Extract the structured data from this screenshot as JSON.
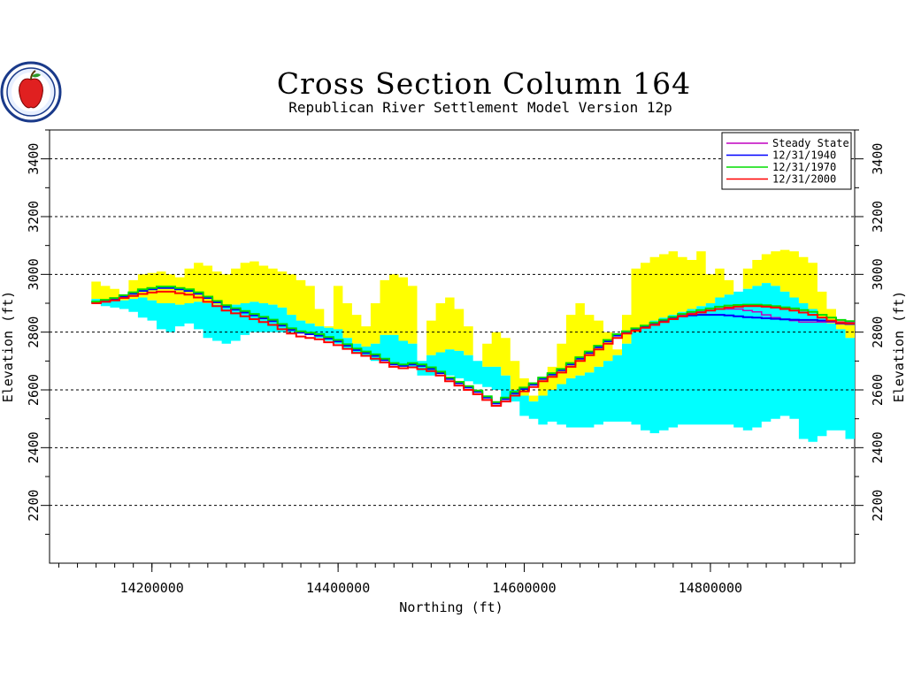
{
  "chart_data": {
    "type": "area",
    "title": "Cross Section Column 164",
    "subtitle": "Republican River Settlement Model Version 12p",
    "xlabel": "Northing (ft)",
    "ylabel": "Elevation (ft)",
    "ylabel_right": "Elevation (ft)",
    "xlim": [
      14090000,
      14955000
    ],
    "ylim": [
      2000,
      3500
    ],
    "xticks": [
      {
        "value": 14200000,
        "label": "14200000"
      },
      {
        "value": 14400000,
        "label": "14400000"
      },
      {
        "value": 14600000,
        "label": "14600000"
      },
      {
        "value": 14800000,
        "label": "14800000"
      }
    ],
    "yticks": [
      {
        "value": 2200,
        "label": "2200"
      },
      {
        "value": 2400,
        "label": "2400"
      },
      {
        "value": 2600,
        "label": "2600"
      },
      {
        "value": 2800,
        "label": "2800"
      },
      {
        "value": 3000,
        "label": "3000"
      },
      {
        "value": 3200,
        "label": "3200"
      },
      {
        "value": 3400,
        "label": "3400"
      }
    ],
    "grid": true,
    "legend_position": "top-right",
    "layers": {
      "x": [
        14140000,
        14150000,
        14160000,
        14170000,
        14180000,
        14190000,
        14200000,
        14210000,
        14220000,
        14230000,
        14240000,
        14250000,
        14260000,
        14270000,
        14280000,
        14290000,
        14300000,
        14310000,
        14320000,
        14330000,
        14340000,
        14350000,
        14360000,
        14370000,
        14380000,
        14390000,
        14400000,
        14410000,
        14420000,
        14430000,
        14440000,
        14450000,
        14460000,
        14470000,
        14480000,
        14490000,
        14500000,
        14510000,
        14520000,
        14530000,
        14540000,
        14550000,
        14560000,
        14570000,
        14580000,
        14590000,
        14600000,
        14610000,
        14620000,
        14630000,
        14640000,
        14650000,
        14660000,
        14670000,
        14680000,
        14690000,
        14700000,
        14710000,
        14720000,
        14730000,
        14740000,
        14750000,
        14760000,
        14770000,
        14780000,
        14790000,
        14800000,
        14810000,
        14820000,
        14830000,
        14840000,
        14850000,
        14860000,
        14870000,
        14880000,
        14890000,
        14900000,
        14910000,
        14920000,
        14930000,
        14940000,
        14950000
      ],
      "land_surface": [
        2975,
        2960,
        2950,
        2920,
        2980,
        3000,
        3005,
        3010,
        3000,
        2990,
        3020,
        3040,
        3030,
        3010,
        3000,
        3020,
        3040,
        3045,
        3030,
        3020,
        3010,
        3000,
        2980,
        2960,
        2880,
        2820,
        2960,
        2900,
        2860,
        2820,
        2900,
        2980,
        3000,
        2990,
        2960,
        2700,
        2840,
        2900,
        2920,
        2880,
        2820,
        2700,
        2760,
        2800,
        2780,
        2700,
        2640,
        2580,
        2640,
        2680,
        2760,
        2860,
        2900,
        2860,
        2840,
        2800,
        2740,
        2860,
        3020,
        3040,
        3060,
        3070,
        3080,
        3060,
        3050,
        3080,
        3000,
        3020,
        2980,
        2940,
        3020,
        3050,
        3070,
        3080,
        3085,
        3080,
        3060,
        3040,
        2940,
        2880,
        2840,
        2830
      ],
      "aquifer_top": [
        2915,
        2910,
        2908,
        2910,
        2915,
        2920,
        2910,
        2900,
        2900,
        2895,
        2900,
        2905,
        2900,
        2895,
        2890,
        2895,
        2900,
        2905,
        2900,
        2895,
        2885,
        2860,
        2840,
        2830,
        2820,
        2815,
        2810,
        2780,
        2760,
        2750,
        2760,
        2790,
        2790,
        2770,
        2760,
        2700,
        2720,
        2730,
        2740,
        2735,
        2720,
        2700,
        2680,
        2680,
        2650,
        2600,
        2580,
        2560,
        2580,
        2600,
        2620,
        2640,
        2650,
        2660,
        2680,
        2700,
        2720,
        2760,
        2800,
        2820,
        2840,
        2850,
        2860,
        2870,
        2880,
        2890,
        2900,
        2920,
        2930,
        2940,
        2950,
        2960,
        2970,
        2960,
        2940,
        2920,
        2900,
        2880,
        2850,
        2830,
        2810,
        2780
      ],
      "aquifer_base": [
        2900,
        2890,
        2885,
        2880,
        2870,
        2850,
        2840,
        2810,
        2800,
        2820,
        2830,
        2810,
        2780,
        2770,
        2760,
        2770,
        2790,
        2800,
        2800,
        2800,
        2800,
        2800,
        2800,
        2790,
        2780,
        2770,
        2760,
        2740,
        2730,
        2720,
        2700,
        2700,
        2690,
        2690,
        2680,
        2650,
        2650,
        2660,
        2650,
        2640,
        2630,
        2620,
        2610,
        2600,
        2570,
        2560,
        2510,
        2500,
        2480,
        2490,
        2480,
        2470,
        2470,
        2470,
        2480,
        2490,
        2490,
        2490,
        2480,
        2460,
        2450,
        2460,
        2470,
        2480,
        2480,
        2480,
        2480,
        2480,
        2480,
        2470,
        2460,
        2470,
        2490,
        2500,
        2510,
        2500,
        2430,
        2420,
        2440,
        2460,
        2460,
        2430
      ]
    },
    "series": [
      {
        "name": "Steady State",
        "color": "#c000c0",
        "y": [
          2905,
          2910,
          2915,
          2925,
          2935,
          2945,
          2950,
          2955,
          2955,
          2950,
          2945,
          2935,
          2920,
          2905,
          2890,
          2880,
          2870,
          2860,
          2850,
          2840,
          2825,
          2810,
          2800,
          2795,
          2790,
          2780,
          2770,
          2755,
          2740,
          2730,
          2720,
          2705,
          2690,
          2685,
          2690,
          2685,
          2675,
          2660,
          2640,
          2625,
          2610,
          2595,
          2575,
          2555,
          2570,
          2590,
          2605,
          2620,
          2640,
          2655,
          2670,
          2690,
          2710,
          2730,
          2750,
          2770,
          2790,
          2800,
          2810,
          2820,
          2830,
          2840,
          2850,
          2860,
          2865,
          2870,
          2875,
          2880,
          2880,
          2880,
          2875,
          2870,
          2860,
          2850,
          2845,
          2840,
          2835,
          2835,
          2835,
          2835,
          2835,
          2835
        ]
      },
      {
        "name": "12/31/1940",
        "color": "#0000ff",
        "y": [
          2903,
          2908,
          2913,
          2923,
          2933,
          2943,
          2948,
          2953,
          2953,
          2948,
          2943,
          2933,
          2918,
          2903,
          2888,
          2878,
          2868,
          2858,
          2848,
          2838,
          2823,
          2808,
          2798,
          2793,
          2788,
          2778,
          2768,
          2753,
          2738,
          2728,
          2718,
          2703,
          2688,
          2683,
          2688,
          2683,
          2673,
          2658,
          2638,
          2623,
          2608,
          2593,
          2573,
          2553,
          2568,
          2588,
          2603,
          2618,
          2638,
          2653,
          2668,
          2688,
          2708,
          2728,
          2748,
          2768,
          2788,
          2798,
          2808,
          2818,
          2828,
          2838,
          2848,
          2855,
          2858,
          2860,
          2860,
          2860,
          2858,
          2855,
          2852,
          2850,
          2848,
          2846,
          2844,
          2843,
          2842,
          2842,
          2840,
          2838,
          2830,
          2828
        ]
      },
      {
        "name": "12/31/1970",
        "color": "#00dd00",
        "y": [
          2906,
          2912,
          2918,
          2928,
          2938,
          2948,
          2953,
          2958,
          2958,
          2953,
          2948,
          2938,
          2923,
          2908,
          2893,
          2883,
          2873,
          2863,
          2853,
          2843,
          2828,
          2813,
          2803,
          2798,
          2793,
          2783,
          2773,
          2758,
          2743,
          2733,
          2723,
          2708,
          2693,
          2688,
          2693,
          2688,
          2678,
          2663,
          2643,
          2628,
          2613,
          2598,
          2578,
          2558,
          2573,
          2593,
          2608,
          2623,
          2643,
          2658,
          2673,
          2693,
          2713,
          2733,
          2753,
          2773,
          2793,
          2803,
          2813,
          2823,
          2833,
          2843,
          2853,
          2863,
          2870,
          2876,
          2882,
          2888,
          2892,
          2894,
          2895,
          2895,
          2893,
          2890,
          2886,
          2882,
          2876,
          2870,
          2860,
          2850,
          2842,
          2838
        ]
      },
      {
        "name": "12/31/2000",
        "color": "#ff0000",
        "y": [
          2900,
          2905,
          2910,
          2918,
          2925,
          2932,
          2937,
          2940,
          2940,
          2935,
          2930,
          2920,
          2905,
          2890,
          2875,
          2865,
          2855,
          2845,
          2835,
          2825,
          2810,
          2795,
          2785,
          2780,
          2775,
          2765,
          2755,
          2742,
          2728,
          2718,
          2708,
          2695,
          2680,
          2675,
          2678,
          2672,
          2665,
          2650,
          2630,
          2615,
          2600,
          2585,
          2565,
          2545,
          2560,
          2580,
          2595,
          2610,
          2630,
          2645,
          2660,
          2680,
          2700,
          2720,
          2740,
          2760,
          2780,
          2795,
          2805,
          2815,
          2825,
          2835,
          2845,
          2855,
          2862,
          2868,
          2875,
          2880,
          2885,
          2888,
          2890,
          2890,
          2888,
          2885,
          2880,
          2875,
          2868,
          2860,
          2850,
          2840,
          2832,
          2830
        ]
      }
    ]
  },
  "logo": {
    "name": "state-seal-apple-logo"
  }
}
